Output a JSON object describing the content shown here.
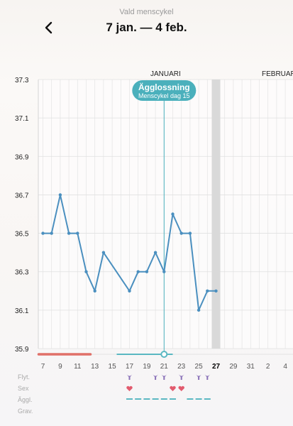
{
  "header": {
    "subtitle": "Vald menscykel",
    "title": "7 jan. — 4 feb.",
    "back_icon": "chevron-left-icon"
  },
  "months": [
    "JANUARI",
    "FEBRUAR"
  ],
  "ovulation": {
    "label": "Ägglossning",
    "sub": "Menscykel dag 15"
  },
  "row_labels": [
    "Flyt.",
    "Sex",
    "Äggl.",
    "Grav."
  ],
  "colors": {
    "line": "#4a8fbf",
    "ovulation_badge": "#4bb0bc",
    "period_bar": "#e07068",
    "fertile_dash": "#5bb8c2",
    "heart": "#e25b6e",
    "flow_icon": "#8a72b8",
    "today_column": "#d9d9d9"
  },
  "chart_data": {
    "type": "line",
    "x": [
      "7 jan",
      "8 jan",
      "9 jan",
      "10 jan",
      "11 jan",
      "12 jan",
      "13 jan",
      "14 jan",
      "15 jan",
      "16 jan",
      "17 jan",
      "18 jan",
      "19 jan",
      "20 jan",
      "21 jan",
      "22 jan",
      "23 jan",
      "24 jan",
      "25 jan",
      "26 jan",
      "27 jan"
    ],
    "values": [
      36.5,
      36.5,
      36.7,
      36.5,
      36.5,
      36.3,
      36.2,
      36.4,
      null,
      null,
      36.2,
      36.3,
      36.3,
      36.4,
      36.3,
      36.6,
      36.5,
      36.5,
      36.1,
      36.2,
      36.2
    ],
    "y_ticks": [
      "37.3",
      "37.1",
      "36.9",
      "36.7",
      "36.5",
      "36.3",
      "36.1",
      "35.9"
    ],
    "ylim": [
      35.9,
      37.3
    ],
    "x_tick_labels": [
      "7",
      "9",
      "11",
      "13",
      "15",
      "17",
      "19",
      "21",
      "23",
      "25",
      "27",
      "29",
      "31",
      "2",
      "4"
    ],
    "today_label": "27",
    "grid": true
  },
  "markers": {
    "flow_days": [
      "17 jan",
      "20 jan",
      "21 jan",
      "23 jan",
      "25 jan",
      "26 jan"
    ],
    "sex_days": [
      "17 jan",
      "22 jan",
      "23 jan"
    ],
    "fertile_days": [
      "17 jan",
      "18 jan",
      "19 jan",
      "20 jan",
      "21 jan",
      "22 jan",
      "24 jan",
      "25 jan",
      "26 jan"
    ],
    "period_days": [
      "7 jan",
      "8 jan",
      "9 jan",
      "10 jan",
      "11 jan",
      "12 jan"
    ]
  }
}
